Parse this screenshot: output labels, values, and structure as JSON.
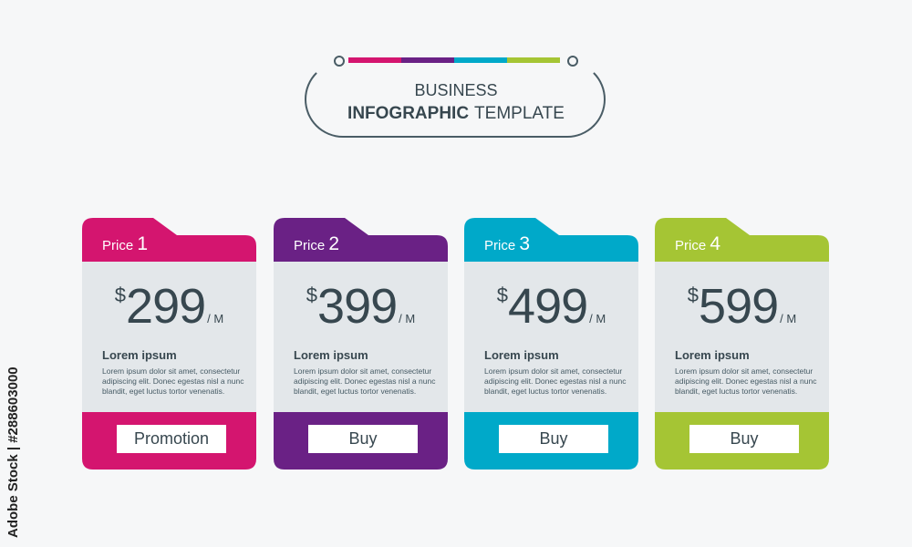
{
  "header": {
    "line1": "BUSINESS",
    "line2_bold": "INFOGRAPHIC",
    "line2": "TEMPLATE",
    "colors": [
      "#d4156f",
      "#6a2185",
      "#00a9c9",
      "#a5c534"
    ]
  },
  "cards": [
    {
      "label": "Price",
      "num": "1",
      "currency": "$",
      "amount": "299",
      "period": "/ M",
      "heading": "Lorem ipsum",
      "text": "Lorem ipsum dolor sit amet, consectetur adipiscing elit. Donec egestas nisl a nunc blandit, eget luctus tortor venenatis.",
      "button": "Promotion",
      "color": "#d4156f"
    },
    {
      "label": "Price",
      "num": "2",
      "currency": "$",
      "amount": "399",
      "period": "/ M",
      "heading": "Lorem ipsum",
      "text": "Lorem ipsum dolor sit amet, consectetur adipiscing elit. Donec egestas nisl a nunc blandit, eget luctus tortor venenatis.",
      "button": "Buy",
      "color": "#6a2185"
    },
    {
      "label": "Price",
      "num": "3",
      "currency": "$",
      "amount": "499",
      "period": "/ M",
      "heading": "Lorem ipsum",
      "text": "Lorem ipsum dolor sit amet, consectetur adipiscing elit. Donec egestas nisl a nunc blandit, eget luctus tortor venenatis.",
      "button": "Buy",
      "color": "#00a9c9"
    },
    {
      "label": "Price",
      "num": "4",
      "currency": "$",
      "amount": "599",
      "period": "/ M",
      "heading": "Lorem ipsum",
      "text": "Lorem ipsum dolor sit amet, consectetur adipiscing elit. Donec egestas nisl a nunc blandit, eget luctus tortor venenatis.",
      "button": "Buy",
      "color": "#a5c534"
    }
  ],
  "watermark": "Adobe Stock | #288603000"
}
